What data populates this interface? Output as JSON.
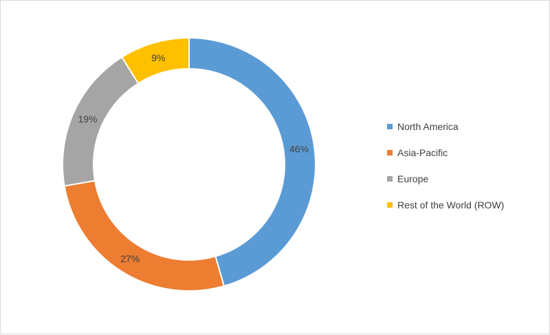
{
  "chart_data": {
    "type": "pie",
    "variant": "doughnut",
    "categories": [
      "North America",
      "Asia-Pacific",
      "Europe",
      "Rest of the World (ROW)"
    ],
    "values": [
      46,
      27,
      19,
      9
    ],
    "labels": [
      "46%",
      "27%",
      "19%",
      "9%"
    ],
    "colors": [
      "#5b9bd5",
      "#ed7d31",
      "#a5a5a5",
      "#ffc000"
    ],
    "legend_position": "right"
  }
}
